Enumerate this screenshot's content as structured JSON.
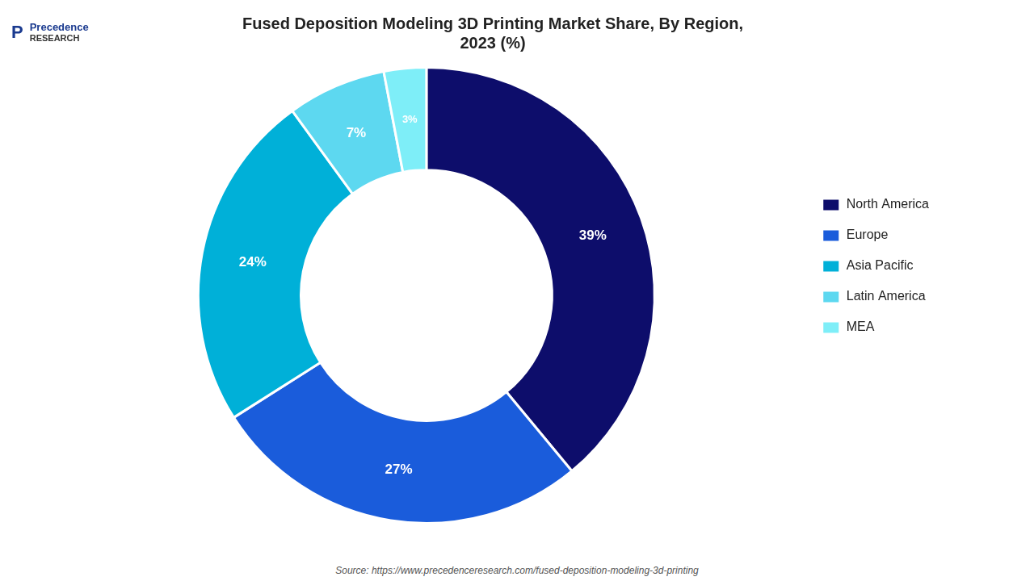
{
  "chart_data": {
    "type": "doughnut",
    "title": "Fused Deposition Modeling 3D Printing Market Share, By Region,\n2023 (%)",
    "categories": [
      "North America",
      "Europe",
      "Asia Pacific",
      "Latin America",
      "MEA"
    ],
    "values": [
      39,
      27,
      24,
      7,
      3
    ],
    "value_labels": [
      "39%",
      "27%",
      "24%",
      "7%",
      "3%"
    ],
    "colors": [
      "#0d0d6b",
      "#1a5cdb",
      "#00b0d8",
      "#5dd8f0",
      "#7eeef8"
    ],
    "data_labels": true,
    "legend": "right",
    "annotations": [
      "P",
      "Precedence",
      "RESEARCH",
      "Source: https://www.precedenceresearch.com/fused-deposition-modeling-3d-printing"
    ]
  }
}
